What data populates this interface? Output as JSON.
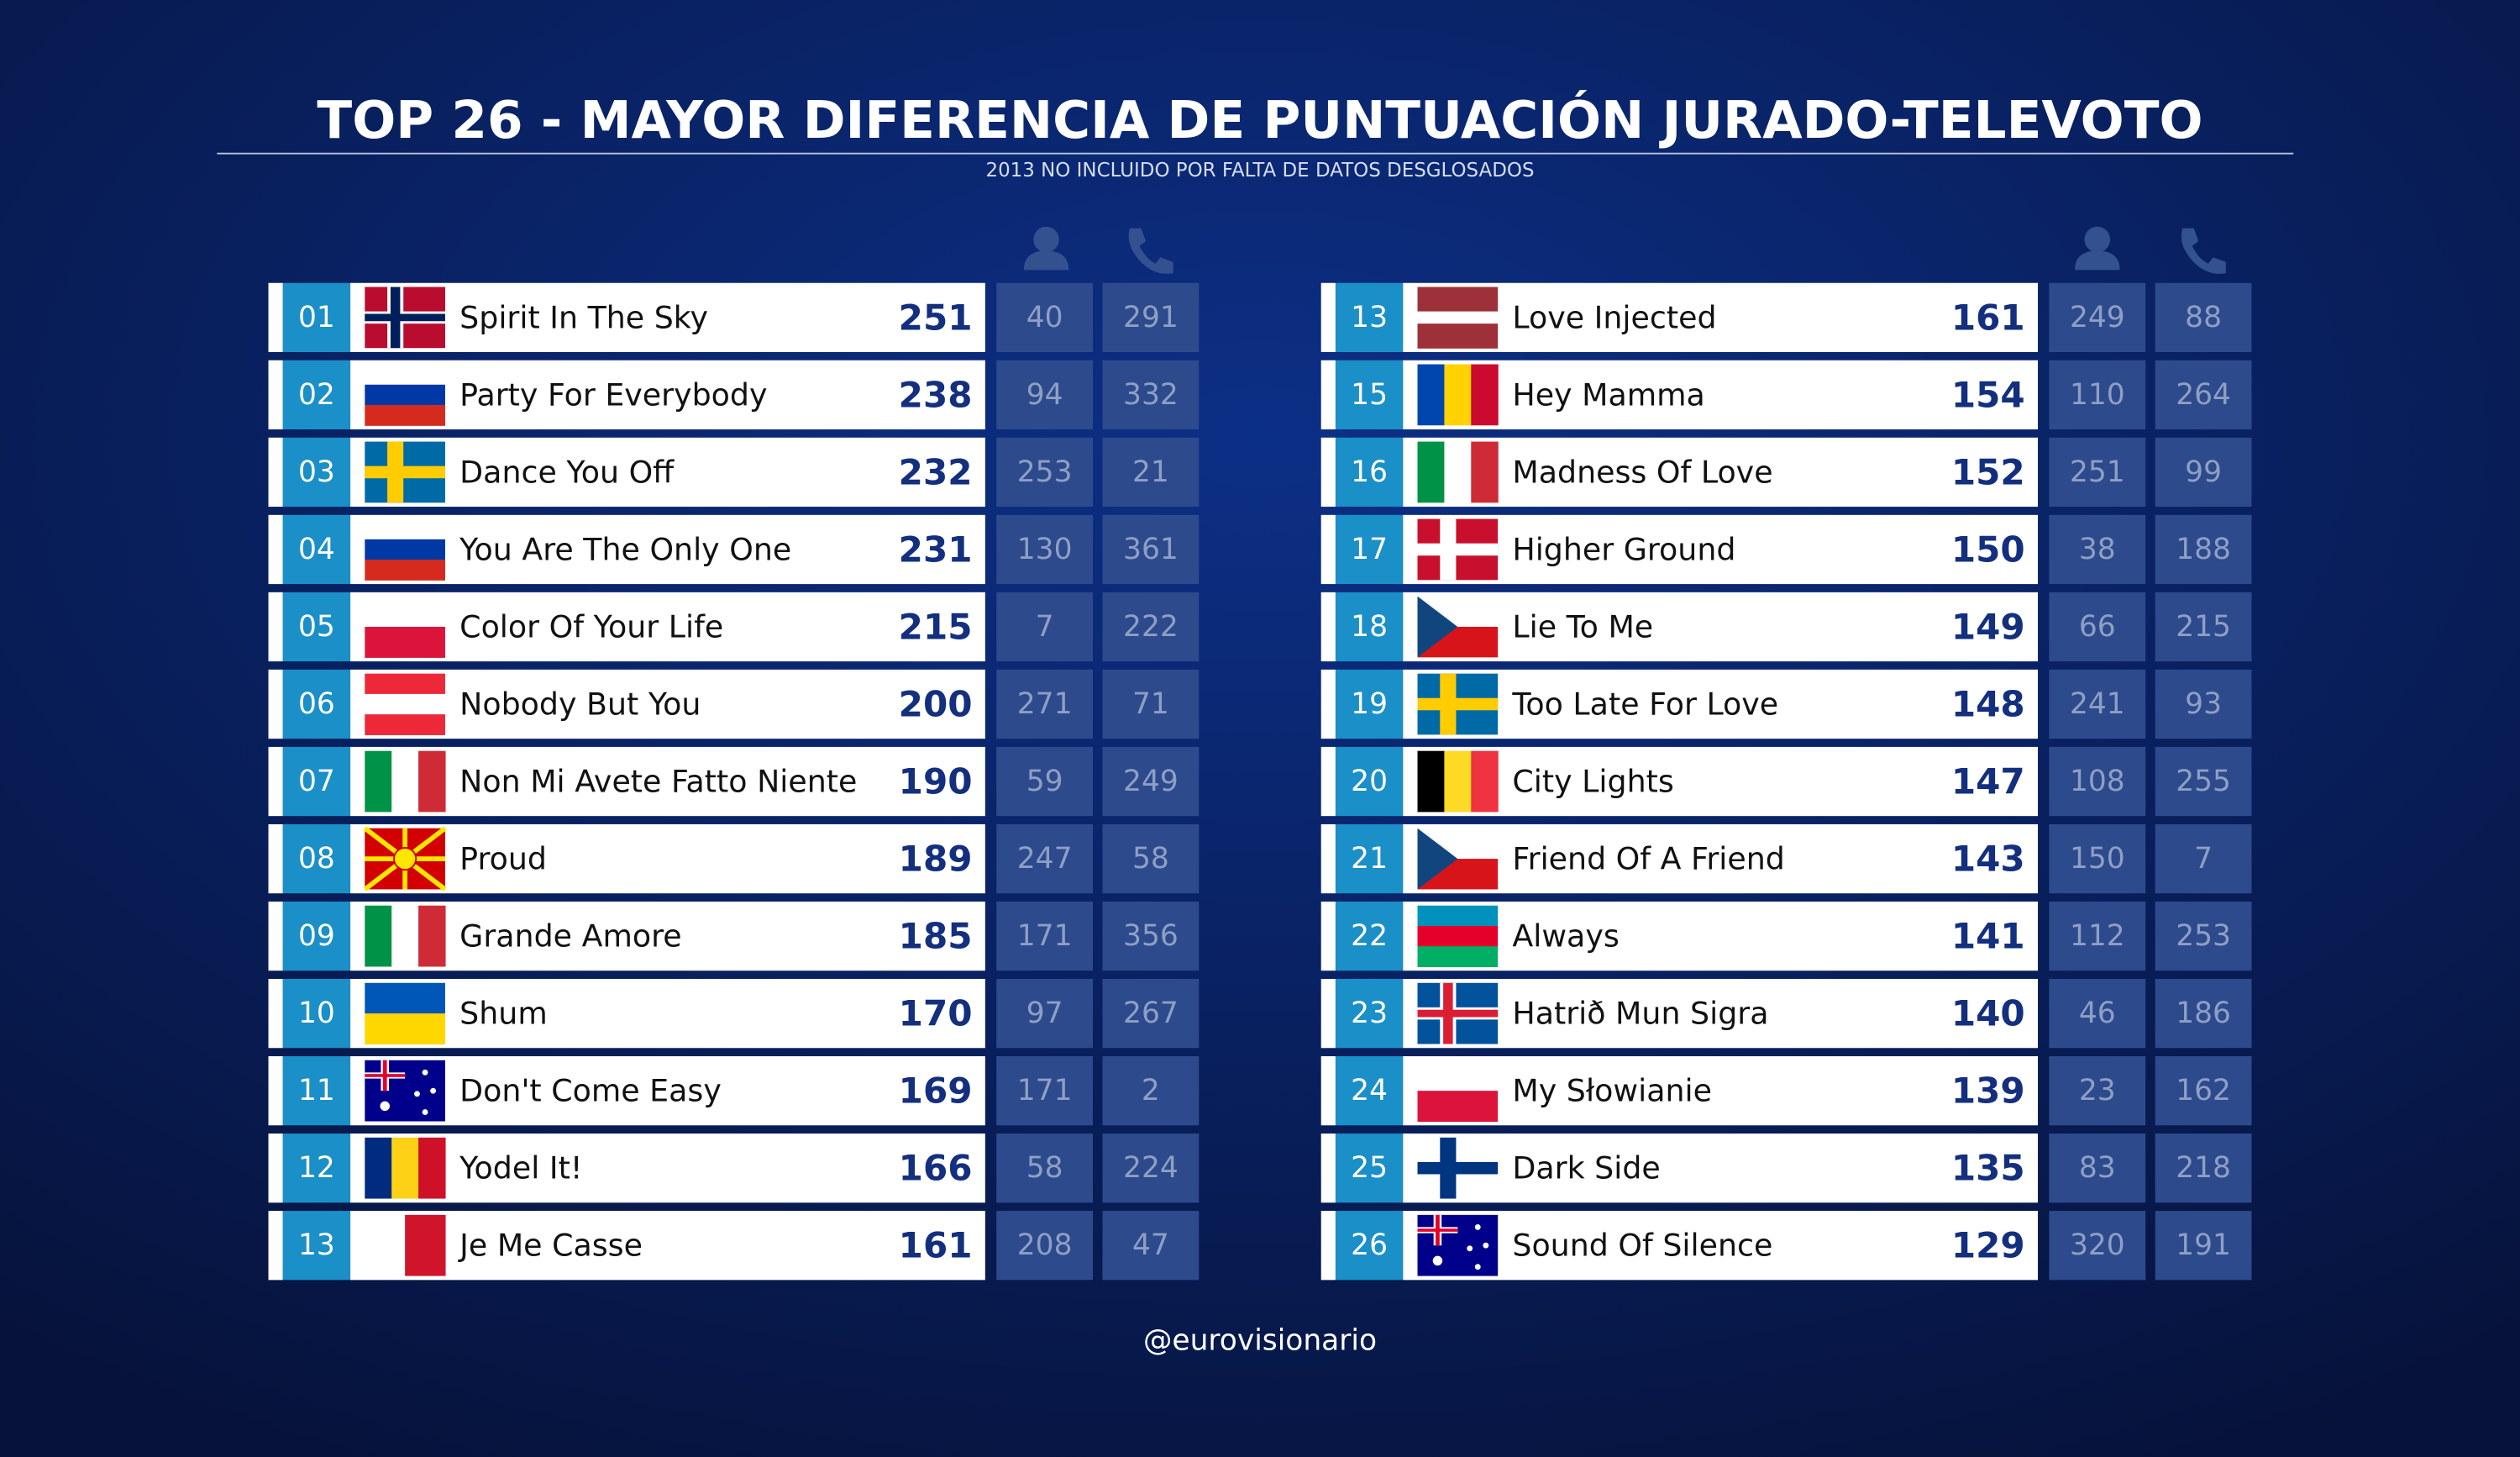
{
  "title": "TOP 26 - MAYOR DIFERENCIA DE PUNTUACIÓN JURADO-TELEVOTO",
  "subtitle": "2013 NO INCLUIDO POR FALTA DE DATOS DESGLOSADOS",
  "tables": [
    {
      "rows": [
        {
          "rank": "01",
          "song": "Spirit In The Sky",
          "difference": 251,
          "jury": 40,
          "televote": 291
        },
        {
          "rank": "02",
          "song": "Party For Everybody",
          "difference": 238,
          "jury": 94,
          "televote": 332
        },
        {
          "rank": "03",
          "song": "Dance You Off",
          "difference": 232,
          "jury": 253,
          "televote": 21
        },
        {
          "rank": "04",
          "song": "You Are The Only One",
          "difference": 231,
          "jury": 130,
          "televote": 361
        },
        {
          "rank": "05",
          "song": "Color Of Your Life",
          "difference": 215,
          "jury": 7,
          "televote": 222
        },
        {
          "rank": "06",
          "song": "Nobody But You",
          "difference": 200,
          "jury": 271,
          "televote": 71
        },
        {
          "rank": "07",
          "song": "Non Mi Avete Fatto Niente",
          "difference": 190,
          "jury": 59,
          "televote": 249
        },
        {
          "rank": "08",
          "song": "Proud",
          "difference": 189,
          "jury": 247,
          "televote": 58
        },
        {
          "rank": "09",
          "song": "Grande Amore",
          "difference": 185,
          "jury": 171,
          "televote": 356
        },
        {
          "rank": "10",
          "song": "Shum",
          "difference": 170,
          "jury": 97,
          "televote": 267
        },
        {
          "rank": "11",
          "song": "Don't Come Easy",
          "difference": 169,
          "jury": 171,
          "televote": 2
        },
        {
          "rank": "12",
          "song": "Yodel It!",
          "difference": 166,
          "jury": 58,
          "televote": 224
        },
        {
          "rank": "13",
          "song": "Je Me Casse",
          "difference": 161,
          "jury": 208,
          "televote": 47
        }
      ]
    },
    {
      "rows": [
        {
          "rank": "13",
          "song": "Love Injected",
          "difference": 161,
          "jury": 249,
          "televote": 88
        },
        {
          "rank": "15",
          "song": "Hey Mamma",
          "difference": 154,
          "jury": 110,
          "televote": 264
        },
        {
          "rank": "16",
          "song": "Madness Of Love",
          "difference": 152,
          "jury": 251,
          "televote": 99
        },
        {
          "rank": "17",
          "song": "Higher Ground",
          "difference": 150,
          "jury": 38,
          "televote": 188
        },
        {
          "rank": "18",
          "song": "Lie To Me",
          "difference": 149,
          "jury": 66,
          "televote": 215
        },
        {
          "rank": "19",
          "song": "Too Late For Love",
          "difference": 148,
          "jury": 241,
          "televote": 93
        },
        {
          "rank": "20",
          "song": "City Lights",
          "difference": 147,
          "jury": 108,
          "televote": 255
        },
        {
          "rank": "21",
          "song": "Friend Of A Friend",
          "difference": 143,
          "jury": 150,
          "televote": 7
        },
        {
          "rank": "22",
          "song": "Always",
          "difference": 141,
          "jury": 112,
          "televote": 253
        },
        {
          "rank": "23",
          "song": "Hatrið Mun Sigra",
          "difference": 140,
          "jury": 46,
          "televote": 186
        },
        {
          "rank": "24",
          "song": "My Słowianie",
          "difference": 139,
          "jury": 23,
          "televote": 162
        },
        {
          "rank": "25",
          "song": "Dark Side",
          "difference": 135,
          "jury": 83,
          "televote": 218
        },
        {
          "rank": "26",
          "song": "Sound Of Silence",
          "difference": 129,
          "jury": 320,
          "televote": 191
        }
      ]
    }
  ],
  "footer": "@eurovisionario"
}
